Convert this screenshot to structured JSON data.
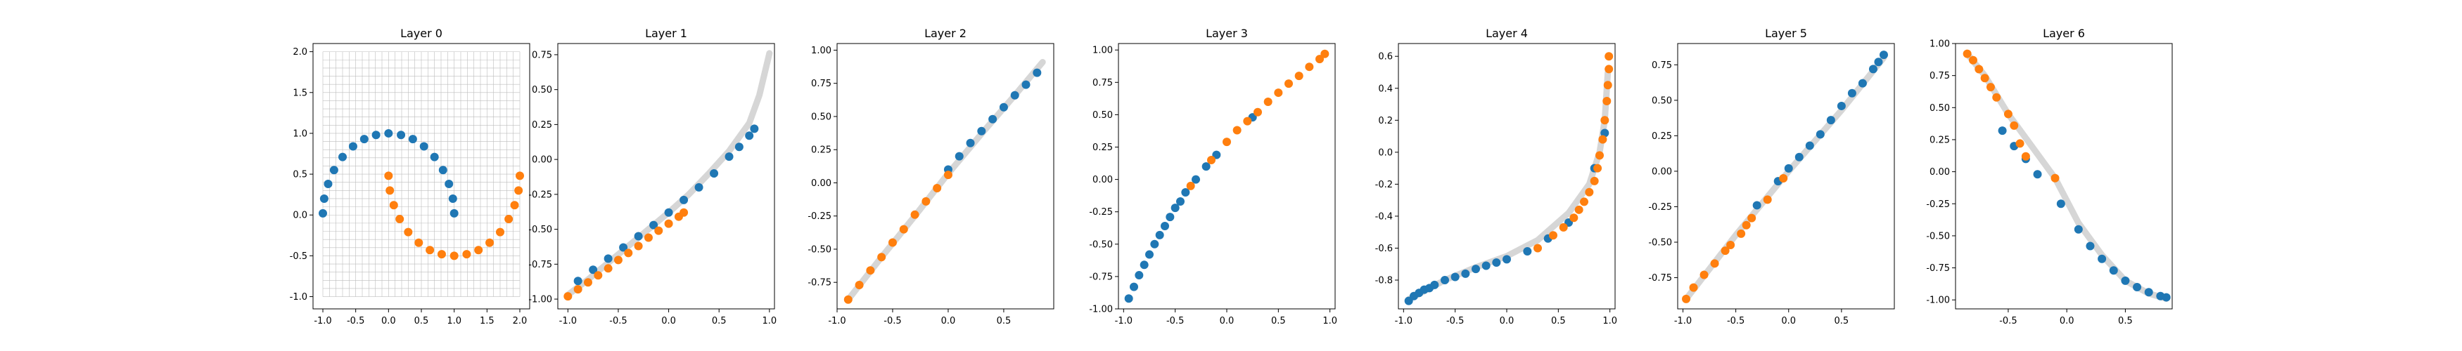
{
  "colors": {
    "class_a": "#1f77b4",
    "class_b": "#ff7f0e",
    "trace": "#cccccc"
  },
  "chart_data": [
    {
      "type": "scatter",
      "title": "Layer 0",
      "xlim": [
        -1.15,
        2.15
      ],
      "ylim": [
        -1.15,
        2.1
      ],
      "xticks": [
        "-1.0",
        "-0.5",
        "0.0",
        "0.5",
        "1.0",
        "1.5",
        "2.0"
      ],
      "yticks": [
        "-1.0",
        "-0.5",
        "0.0",
        "0.5",
        "1.0",
        "1.5",
        "2.0"
      ],
      "grid": true,
      "grid_range": {
        "x": [
          -1.0,
          2.0
        ],
        "y": [
          -1.0,
          2.0
        ],
        "step": 0.1
      },
      "series": [
        {
          "class": "a",
          "x": [
            -1.0,
            -0.98,
            -0.92,
            -0.83,
            -0.7,
            -0.54,
            -0.37,
            -0.19,
            0.0,
            0.19,
            0.37,
            0.54,
            0.7,
            0.83,
            0.92,
            0.98,
            1.0
          ],
          "y": [
            0.02,
            0.2,
            0.38,
            0.55,
            0.71,
            0.84,
            0.93,
            0.98,
            1.0,
            0.98,
            0.93,
            0.84,
            0.71,
            0.55,
            0.38,
            0.2,
            0.02
          ]
        },
        {
          "class": "b",
          "x": [
            0.0,
            0.02,
            0.08,
            0.17,
            0.3,
            0.46,
            0.63,
            0.81,
            1.0,
            1.19,
            1.37,
            1.54,
            1.7,
            1.83,
            1.92,
            1.98,
            2.0
          ],
          "y": [
            0.48,
            0.3,
            0.12,
            -0.05,
            -0.21,
            -0.34,
            -0.43,
            -0.48,
            -0.5,
            -0.48,
            -0.43,
            -0.34,
            -0.21,
            -0.05,
            0.12,
            0.3,
            0.48
          ]
        }
      ]
    },
    {
      "type": "scatter",
      "title": "Layer 1",
      "xlim": [
        -1.1,
        1.05
      ],
      "ylim": [
        -1.07,
        0.83
      ],
      "xticks": [
        "-1.0",
        "-0.5",
        "0.0",
        "0.5",
        "1.0"
      ],
      "yticks": [
        "-1.00",
        "-0.75",
        "-0.50",
        "-0.25",
        "0.00",
        "0.25",
        "0.50",
        "0.75"
      ],
      "trace": {
        "x": [
          -1.0,
          -0.8,
          -0.6,
          -0.4,
          -0.2,
          0.0,
          0.2,
          0.4,
          0.6,
          0.8,
          0.9,
          1.0
        ],
        "y": [
          -0.97,
          -0.86,
          -0.74,
          -0.62,
          -0.5,
          -0.38,
          -0.25,
          -0.1,
          0.06,
          0.26,
          0.46,
          0.76
        ]
      },
      "series": [
        {
          "class": "a",
          "x": [
            -0.9,
            -0.75,
            -0.6,
            -0.45,
            -0.3,
            -0.15,
            0.0,
            0.15,
            0.3,
            0.45,
            0.6,
            0.7,
            0.8,
            0.85
          ],
          "y": [
            -0.87,
            -0.79,
            -0.71,
            -0.63,
            -0.55,
            -0.47,
            -0.38,
            -0.29,
            -0.2,
            -0.1,
            0.02,
            0.09,
            0.17,
            0.22
          ]
        },
        {
          "class": "b",
          "x": [
            -1.0,
            -0.9,
            -0.8,
            -0.7,
            -0.6,
            -0.5,
            -0.4,
            -0.3,
            -0.2,
            -0.1,
            0.0,
            0.1,
            0.15
          ],
          "y": [
            -0.98,
            -0.93,
            -0.88,
            -0.83,
            -0.78,
            -0.72,
            -0.67,
            -0.62,
            -0.56,
            -0.51,
            -0.46,
            -0.41,
            -0.38
          ]
        }
      ]
    },
    {
      "type": "scatter",
      "title": "Layer 2",
      "xlim": [
        -1.0,
        0.95
      ],
      "ylim": [
        -0.95,
        1.05
      ],
      "xticks": [
        "-1.0",
        "-0.5",
        "0.0",
        "0.5"
      ],
      "yticks": [
        "-0.75",
        "-0.50",
        "-0.25",
        "0.00",
        "0.25",
        "0.50",
        "0.75",
        "1.00"
      ],
      "trace": {
        "x": [
          -0.9,
          -0.6,
          -0.3,
          0.0,
          0.3,
          0.6,
          0.85
        ],
        "y": [
          -0.88,
          -0.56,
          -0.25,
          0.07,
          0.37,
          0.66,
          0.91
        ]
      },
      "series": [
        {
          "class": "a",
          "x": [
            0.0,
            0.1,
            0.2,
            0.3,
            0.4,
            0.5,
            0.6,
            0.7,
            0.8
          ],
          "y": [
            0.1,
            0.2,
            0.3,
            0.39,
            0.48,
            0.57,
            0.66,
            0.74,
            0.83
          ]
        },
        {
          "class": "b",
          "x": [
            -0.9,
            -0.8,
            -0.7,
            -0.6,
            -0.5,
            -0.4,
            -0.3,
            -0.2,
            -0.1,
            0.0
          ],
          "y": [
            -0.88,
            -0.77,
            -0.66,
            -0.56,
            -0.45,
            -0.35,
            -0.24,
            -0.14,
            -0.04,
            0.06
          ]
        }
      ]
    },
    {
      "type": "scatter",
      "title": "Layer 3",
      "xlim": [
        -1.05,
        1.05
      ],
      "ylim": [
        -1.0,
        1.05
      ],
      "xticks": [
        "-1.0",
        "-0.5",
        "0.0",
        "0.5",
        "1.0"
      ],
      "yticks": [
        "-1.00",
        "-0.75",
        "-0.50",
        "-0.25",
        "0.00",
        "0.25",
        "0.50",
        "0.75",
        "1.00"
      ],
      "series": [
        {
          "class": "a",
          "x": [
            -0.95,
            -0.9,
            -0.85,
            -0.8,
            -0.75,
            -0.7,
            -0.65,
            -0.6,
            -0.55,
            -0.5,
            -0.45,
            -0.4,
            -0.3,
            -0.2,
            -0.1,
            0.25
          ],
          "y": [
            -0.92,
            -0.83,
            -0.74,
            -0.66,
            -0.58,
            -0.5,
            -0.43,
            -0.36,
            -0.29,
            -0.22,
            -0.17,
            -0.1,
            0.0,
            0.1,
            0.19,
            0.48
          ]
        },
        {
          "class": "b",
          "x": [
            -0.35,
            -0.15,
            0.0,
            0.1,
            0.2,
            0.3,
            0.4,
            0.5,
            0.6,
            0.7,
            0.8,
            0.9,
            0.95
          ],
          "y": [
            -0.05,
            0.15,
            0.29,
            0.38,
            0.45,
            0.52,
            0.6,
            0.67,
            0.74,
            0.8,
            0.87,
            0.93,
            0.97
          ]
        }
      ]
    },
    {
      "type": "scatter",
      "title": "Layer 4",
      "xlim": [
        -1.05,
        1.05
      ],
      "ylim": [
        -0.98,
        0.68
      ],
      "xticks": [
        "-1.0",
        "-0.5",
        "0.0",
        "0.5",
        "1.0"
      ],
      "yticks": [
        "-0.8",
        "-0.6",
        "-0.4",
        "-0.2",
        "0.0",
        "0.2",
        "0.4",
        "0.6"
      ],
      "trace": {
        "x": [
          -0.95,
          -0.6,
          -0.3,
          0.0,
          0.3,
          0.6,
          0.8,
          0.9,
          0.95,
          0.98
        ],
        "y": [
          -0.92,
          -0.8,
          -0.72,
          -0.65,
          -0.55,
          -0.38,
          -0.2,
          0.0,
          0.2,
          0.5
        ]
      },
      "series": [
        {
          "class": "a",
          "x": [
            -0.95,
            -0.9,
            -0.85,
            -0.8,
            -0.75,
            -0.7,
            -0.6,
            -0.5,
            -0.4,
            -0.3,
            -0.2,
            -0.1,
            0.0,
            0.2,
            0.4,
            0.6,
            0.85,
            0.95
          ],
          "y": [
            -0.93,
            -0.9,
            -0.88,
            -0.86,
            -0.85,
            -0.83,
            -0.8,
            -0.78,
            -0.76,
            -0.73,
            -0.71,
            -0.69,
            -0.67,
            -0.62,
            -0.54,
            -0.44,
            -0.1,
            0.12
          ]
        },
        {
          "class": "b",
          "x": [
            0.3,
            0.45,
            0.55,
            0.65,
            0.7,
            0.75,
            0.8,
            0.85,
            0.88,
            0.9,
            0.93,
            0.95,
            0.97,
            0.98,
            0.99,
            0.99
          ],
          "y": [
            -0.6,
            -0.52,
            -0.47,
            -0.41,
            -0.36,
            -0.31,
            -0.25,
            -0.18,
            -0.1,
            -0.02,
            0.08,
            0.2,
            0.32,
            0.42,
            0.52,
            0.6
          ]
        }
      ]
    },
    {
      "type": "scatter",
      "title": "Layer 5",
      "xlim": [
        -1.05,
        1.0
      ],
      "ylim": [
        -0.97,
        0.9
      ],
      "xticks": [
        "-1.0",
        "-0.5",
        "0.0",
        "0.5"
      ],
      "yticks": [
        "-0.75",
        "-0.50",
        "-0.25",
        "0.00",
        "0.25",
        "0.50",
        "0.75"
      ],
      "trace": {
        "x": [
          -0.97,
          -0.5,
          0.0,
          0.5,
          0.9
        ],
        "y": [
          -0.9,
          -0.45,
          0.0,
          0.43,
          0.8
        ]
      },
      "series": [
        {
          "class": "a",
          "x": [
            -0.3,
            -0.1,
            0.0,
            0.1,
            0.2,
            0.3,
            0.4,
            0.5,
            0.6,
            0.7,
            0.8,
            0.85,
            0.9
          ],
          "y": [
            -0.24,
            -0.07,
            0.02,
            0.1,
            0.18,
            0.26,
            0.36,
            0.46,
            0.55,
            0.62,
            0.72,
            0.77,
            0.82
          ]
        },
        {
          "class": "b",
          "x": [
            -0.97,
            -0.9,
            -0.8,
            -0.7,
            -0.6,
            -0.55,
            -0.45,
            -0.4,
            -0.35,
            -0.2,
            -0.05
          ],
          "y": [
            -0.9,
            -0.82,
            -0.73,
            -0.65,
            -0.56,
            -0.52,
            -0.44,
            -0.38,
            -0.33,
            -0.2,
            -0.05
          ]
        }
      ]
    },
    {
      "type": "scatter",
      "title": "Layer 6",
      "xlim": [
        -0.95,
        0.9
      ],
      "ylim": [
        -1.07,
        1.0
      ],
      "xticks": [
        "-0.5",
        "0.0",
        "0.5"
      ],
      "yticks": [
        "-1.00",
        "-0.75",
        "-0.50",
        "-0.25",
        "0.00",
        "0.25",
        "0.50",
        "0.75",
        "1.00"
      ],
      "trace": {
        "x": [
          -0.85,
          -0.7,
          -0.5,
          -0.3,
          -0.1,
          0.1,
          0.3,
          0.5,
          0.7,
          0.85
        ],
        "y": [
          0.92,
          0.75,
          0.45,
          0.2,
          -0.05,
          -0.4,
          -0.65,
          -0.85,
          -0.95,
          -0.99
        ]
      },
      "series": [
        {
          "class": "a",
          "x": [
            -0.55,
            -0.45,
            -0.35,
            -0.25,
            -0.05,
            0.1,
            0.2,
            0.3,
            0.4,
            0.5,
            0.6,
            0.7,
            0.8,
            0.85
          ],
          "y": [
            0.32,
            0.2,
            0.1,
            -0.02,
            -0.25,
            -0.45,
            -0.58,
            -0.68,
            -0.77,
            -0.85,
            -0.9,
            -0.94,
            -0.97,
            -0.98
          ]
        },
        {
          "class": "b",
          "x": [
            -0.85,
            -0.8,
            -0.75,
            -0.7,
            -0.65,
            -0.6,
            -0.5,
            -0.45,
            -0.4,
            -0.35,
            -0.1
          ],
          "y": [
            0.92,
            0.87,
            0.8,
            0.73,
            0.66,
            0.58,
            0.45,
            0.36,
            0.22,
            0.12,
            -0.05
          ]
        }
      ]
    }
  ]
}
